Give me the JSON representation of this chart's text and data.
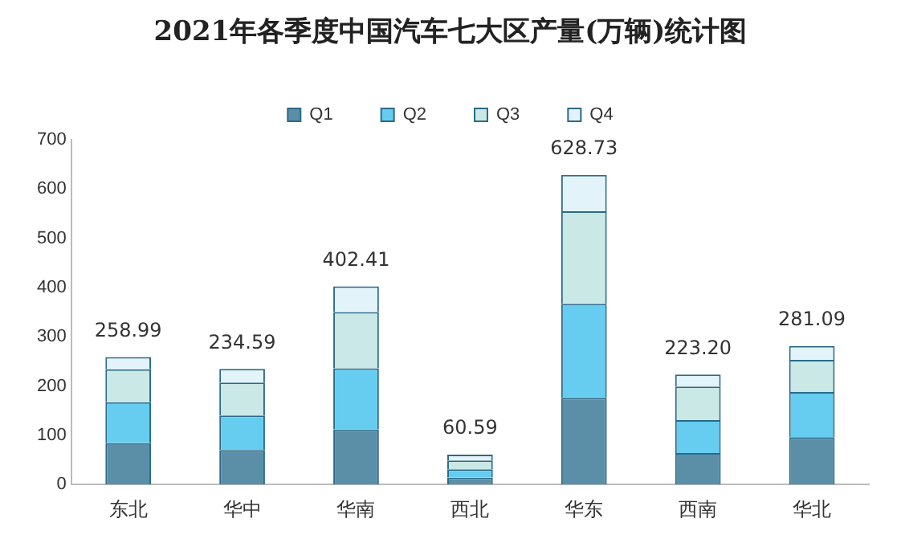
{
  "chart_data": {
    "type": "bar",
    "title": "2021年各季度中国汽车七大区产量(万辆)统计图",
    "stacked": true,
    "categories": [
      "东北",
      "华中",
      "华南",
      "西北",
      "华东",
      "西南",
      "华北"
    ],
    "series": [
      {
        "name": "Q1",
        "color": "#5b8fa8",
        "values": [
          84,
          70,
          112,
          14,
          176,
          64,
          96
        ]
      },
      {
        "name": "Q2",
        "color": "#66ccf0",
        "values": [
          83,
          70,
          124,
          17,
          191,
          67,
          92
        ]
      },
      {
        "name": "Q3",
        "color": "#c9e8e6",
        "values": [
          67,
          67,
          114,
          18,
          188,
          68,
          65
        ]
      },
      {
        "name": "Q4",
        "color": "#e2f4fa",
        "values": [
          24.99,
          27.59,
          52.41,
          11.59,
          73.73,
          24.2,
          28.09
        ]
      }
    ],
    "totals": [
      "258.99",
      "234.59",
      "402.41",
      "60.59",
      "628.73",
      "223.20",
      "281.09"
    ],
    "ylim": [
      0,
      700
    ],
    "yticks": [
      0,
      100,
      200,
      300,
      400,
      500,
      600,
      700
    ],
    "grid": false,
    "legend": "top"
  }
}
